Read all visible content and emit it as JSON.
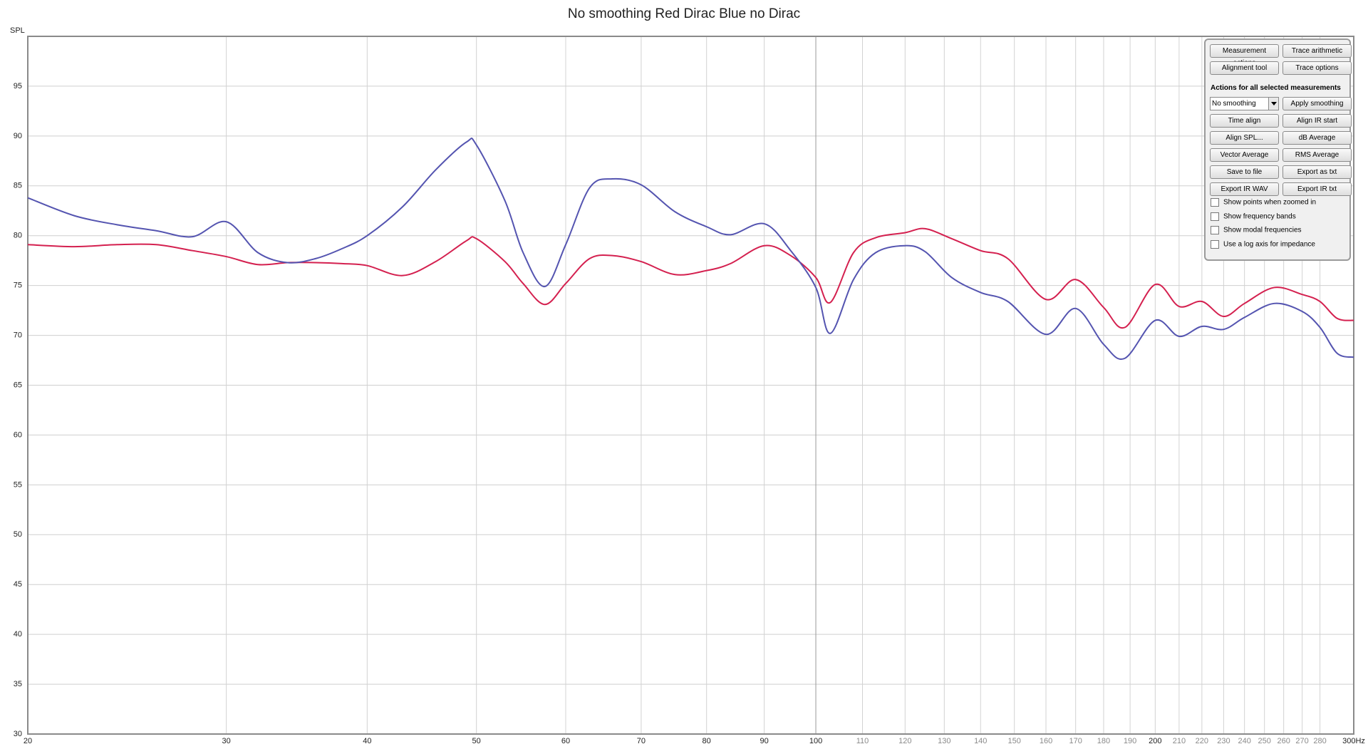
{
  "chart_data": {
    "type": "line",
    "title": "No smoothing Red Dirac Blue no Dirac",
    "ylabel": "SPL",
    "xscale": "log",
    "xlim": [
      20,
      300
    ],
    "ylim": [
      30,
      100
    ],
    "grid": true,
    "xticks": [
      20,
      30,
      40,
      50,
      60,
      70,
      80,
      90,
      100,
      110,
      120,
      130,
      140,
      150,
      160,
      170,
      180,
      190,
      200,
      210,
      220,
      230,
      240,
      250,
      260,
      270,
      280,
      {
        "value": 300,
        "label": "300Hz"
      }
    ],
    "yticks": [
      30,
      35,
      40,
      45,
      50,
      55,
      60,
      65,
      70,
      75,
      80,
      85,
      90,
      95
    ],
    "x": [
      20,
      22,
      24,
      26,
      28,
      30,
      32,
      34,
      36,
      38,
      40,
      43,
      46,
      49,
      50,
      53,
      55,
      57.5,
      60,
      63,
      66,
      70,
      75,
      80,
      84,
      90,
      95,
      100,
      103,
      108,
      113,
      120,
      125,
      132,
      140,
      148,
      160,
      170,
      180,
      188,
      200,
      210,
      220,
      230,
      240,
      255,
      270,
      280,
      290,
      300
    ],
    "series": [
      {
        "name": "Dirac",
        "color": "#d4204f",
        "values": [
          79.1,
          78.9,
          79.1,
          79.1,
          78.5,
          77.9,
          77.1,
          77.3,
          77.3,
          77.2,
          77.0,
          76.0,
          77.4,
          79.5,
          79.7,
          77.4,
          75.2,
          73.1,
          75.2,
          77.7,
          78.0,
          77.4,
          76.1,
          76.5,
          77.2,
          79.0,
          78.0,
          75.8,
          73.3,
          78.3,
          79.8,
          80.3,
          80.7,
          79.7,
          78.5,
          77.7,
          73.6,
          75.6,
          72.8,
          70.8,
          75.1,
          72.9,
          73.4,
          71.9,
          73.2,
          74.8,
          74.1,
          73.4,
          71.7,
          71.5
        ]
      },
      {
        "name": "no Dirac",
        "color": "#5454b0",
        "values": [
          83.8,
          82.0,
          81.1,
          80.5,
          79.9,
          81.4,
          78.3,
          77.3,
          77.7,
          78.7,
          80.0,
          82.9,
          86.6,
          89.4,
          89.1,
          83.5,
          78.3,
          74.9,
          79.1,
          84.8,
          85.7,
          85.1,
          82.4,
          80.9,
          80.1,
          81.2,
          78.5,
          74.8,
          70.2,
          75.6,
          78.3,
          79.0,
          78.4,
          75.8,
          74.3,
          73.4,
          70.1,
          72.7,
          69.1,
          67.7,
          71.5,
          69.9,
          70.9,
          70.6,
          71.8,
          73.2,
          72.4,
          70.8,
          68.2,
          67.8
        ]
      }
    ]
  },
  "panel": {
    "top_buttons": [
      "Measurement actions",
      "Trace arithmetic",
      "Alignment tool",
      "Trace options"
    ],
    "section_title": "Actions for all selected measurements",
    "smoothing": "No smoothing",
    "buttons": [
      "Apply smoothing",
      "Time align",
      "Align IR start",
      "Align SPL...",
      "dB Average",
      "Vector Average",
      "RMS Average",
      "Save to file",
      "Export as txt",
      "Export IR WAV",
      "Export IR txt"
    ],
    "checkboxes": [
      "Show points when zoomed in",
      "Show frequency bands",
      "Show modal frequencies",
      "Use a log axis for impedance"
    ]
  }
}
